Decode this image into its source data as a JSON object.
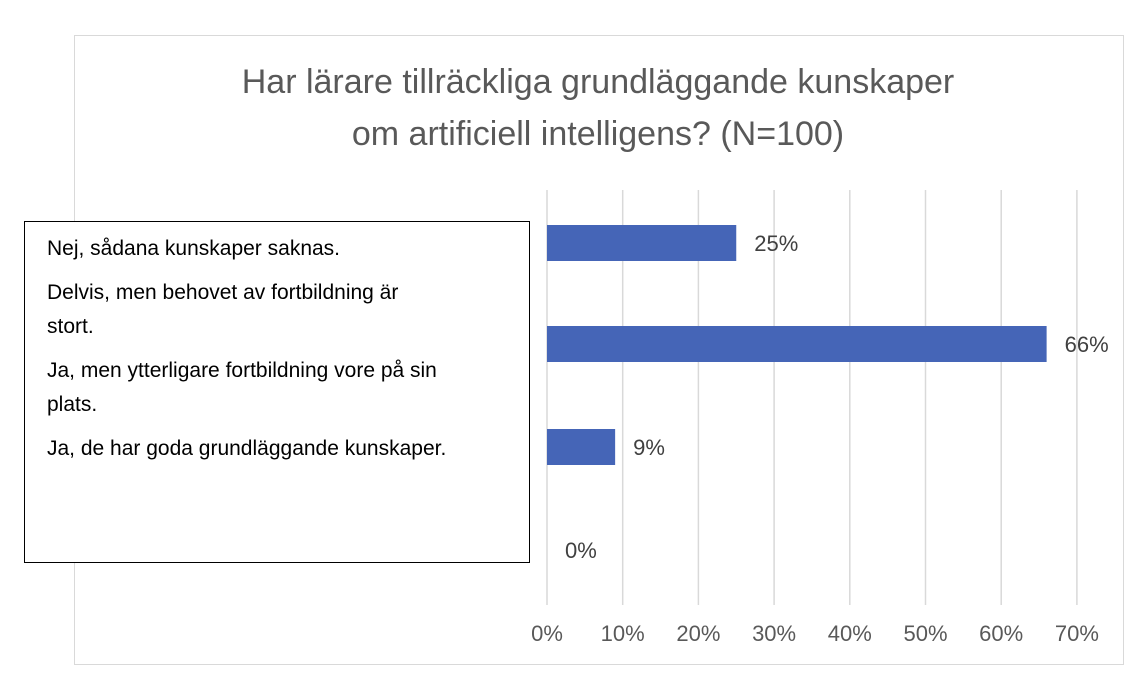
{
  "chart_data": {
    "type": "bar",
    "orientation": "horizontal",
    "title": [
      "Har lärare tillräckliga grundläggande kunskaper",
      "om artificiell intelligens? (N=100)"
    ],
    "categories": [
      "Nej, sådana kunskaper saknas.",
      "Delvis, men behovet av fortbildning är stort.",
      "Ja, men ytterligare fortbildning vore på sin plats.",
      "Ja, de har goda grundläggande kunskaper."
    ],
    "values": [
      25,
      66,
      9,
      0
    ],
    "data_labels": [
      "25%",
      "66%",
      "9%",
      "0%"
    ],
    "xlim": [
      0,
      70
    ],
    "x_ticks": [
      0,
      10,
      20,
      30,
      40,
      50,
      60,
      70
    ],
    "x_tick_labels": [
      "0%",
      "10%",
      "20%",
      "30%",
      "40%",
      "50%",
      "60%",
      "70%"
    ],
    "gridlines": true,
    "bar_color": "#4565b7",
    "grid_color": "#d9d9d9"
  },
  "label_box": {
    "lines": [
      [
        "Nej, sådana kunskaper saknas."
      ],
      [
        "Delvis, men behovet av fortbildning är",
        "stort."
      ],
      [
        "Ja, men ytterligare fortbildning vore på sin",
        "plats."
      ],
      [
        "Ja, de har goda grundläggande kunskaper."
      ]
    ]
  }
}
